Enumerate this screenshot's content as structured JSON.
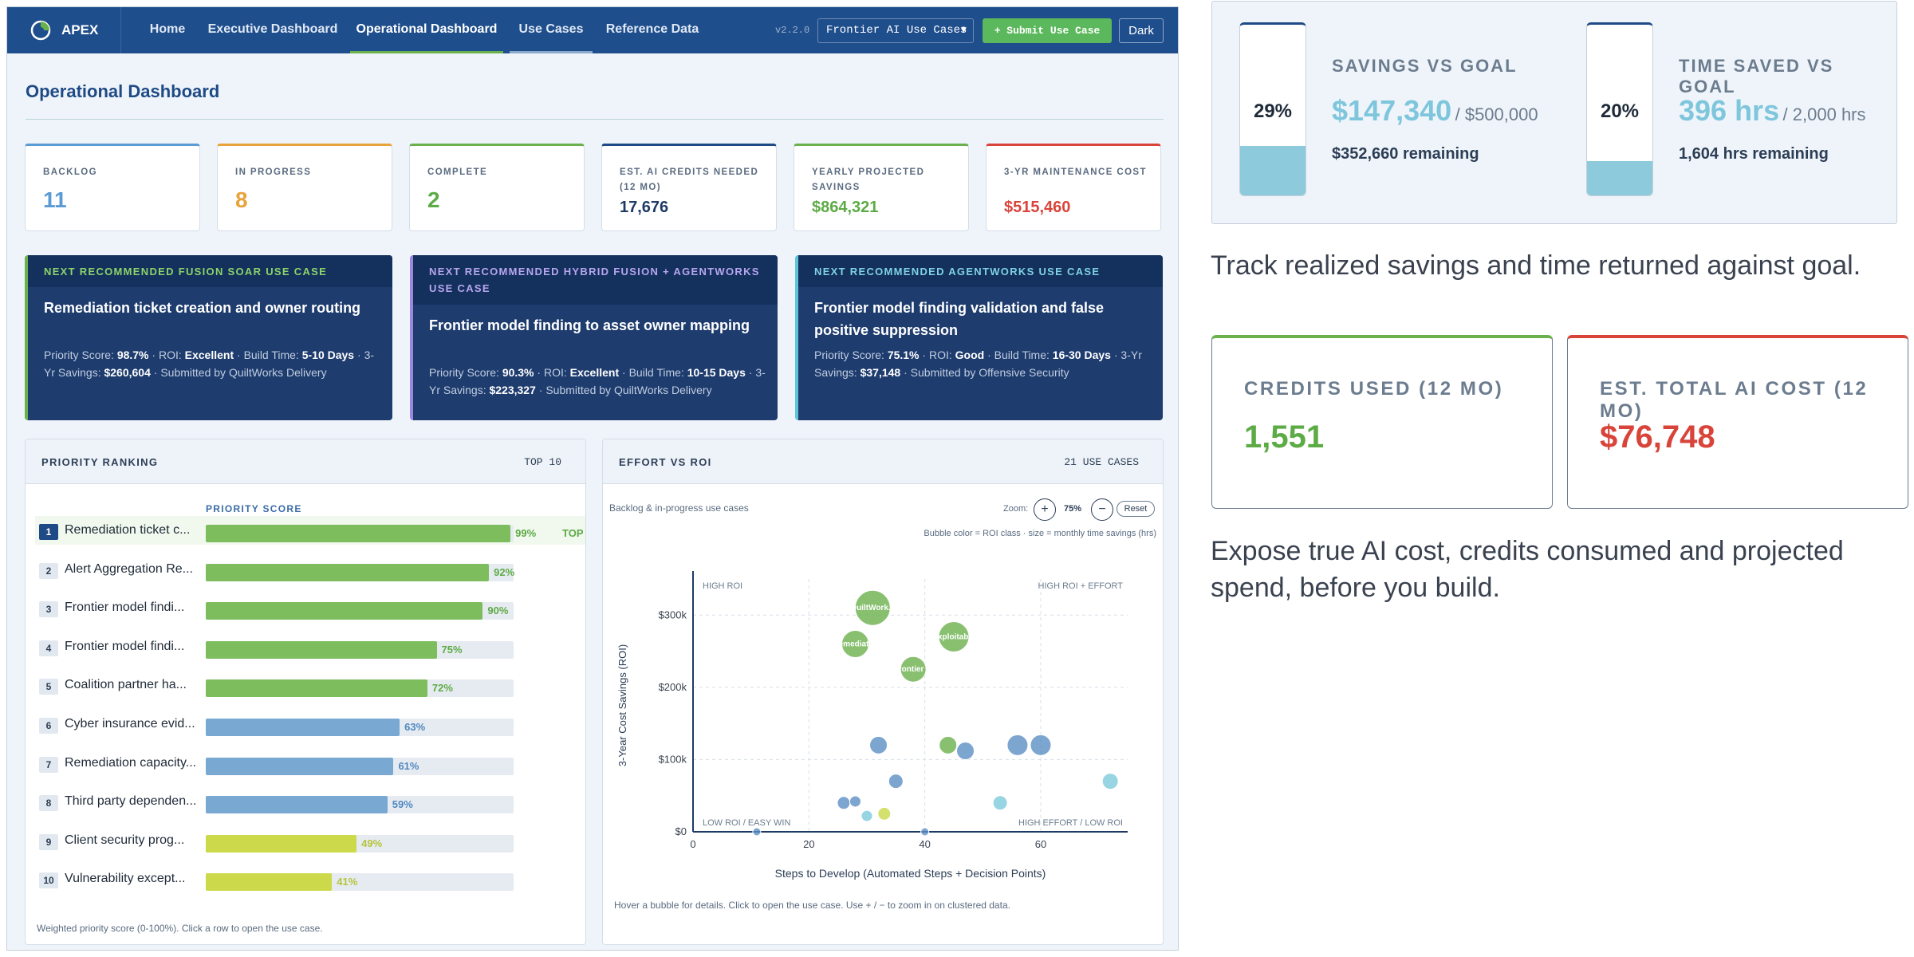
{
  "app": {
    "brand": "APEX",
    "version": "v2.2.0",
    "selector_value": "Frontier AI Use Cases",
    "submit_label": "+ Submit Use Case",
    "dark_label": "Dark"
  },
  "nav": [
    "Home",
    "Executive Dashboard",
    "Operational Dashboard",
    "Use Cases",
    "Reference Data"
  ],
  "page_title": "Operational Dashboard",
  "kpis": [
    {
      "label": "BACKLOG",
      "value": "11",
      "color": "#5b9bd5",
      "accent": "#5b9bd5"
    },
    {
      "label": "IN PROGRESS",
      "value": "8",
      "color": "#e8a33a",
      "accent": "#e8a33a"
    },
    {
      "label": "COMPLETE",
      "value": "2",
      "color": "#5cab45",
      "accent": "#6ab04c"
    },
    {
      "label": "EST. AI CREDITS NEEDED (12 MO)",
      "value": "17,676",
      "color": "#1e3a64",
      "accent": "#1e4a85"
    },
    {
      "label": "YEARLY PROJECTED SAVINGS",
      "value": "$864,321",
      "color": "#5cab45",
      "accent": "#6ab04c"
    },
    {
      "label": "3-YR MAINTENANCE COST",
      "value": "$515,460",
      "color": "#d9443a",
      "accent": "#d9443a"
    }
  ],
  "recommendations": [
    {
      "header": "NEXT RECOMMENDED FUSION SOAR USE CASE",
      "header_color": "#8cd46b",
      "title": "Remediation ticket creation and owner routing",
      "priority_label": "Priority Score:",
      "priority": "98.7%",
      "roi_label": "ROI:",
      "roi": "Excellent",
      "build_label": "Build Time:",
      "build": "5-10 Days",
      "savings_label": "3-Yr Savings:",
      "savings": "$260,604",
      "submitted": "Submitted by QuiltWorks Delivery"
    },
    {
      "header": "NEXT RECOMMENDED HYBRID FUSION + AGENTWORKS USE CASE",
      "header_color": "#b7a6f0",
      "title": "Frontier model finding to asset owner mapping",
      "priority_label": "Priority Score:",
      "priority": "90.3%",
      "roi_label": "ROI:",
      "roi": "Excellent",
      "build_label": "Build Time:",
      "build": "10-15 Days",
      "savings_label": "3-Yr Savings:",
      "savings": "$223,327",
      "submitted": "Submitted by QuiltWorks Delivery"
    },
    {
      "header": "NEXT RECOMMENDED AGENTWORKS USE CASE",
      "header_color": "#7fd3e6",
      "title": "Frontier model finding validation and false positive suppression",
      "priority_label": "Priority Score:",
      "priority": "75.1%",
      "roi_label": "ROI:",
      "roi": "Good",
      "build_label": "Build Time:",
      "build": "16-30 Days",
      "savings_label": "3-Yr Savings:",
      "savings": "$37,148",
      "submitted": "Submitted by Offensive Security"
    }
  ],
  "priority": {
    "title": "PRIORITY RANKING",
    "badge": "TOP 10",
    "column_header": "PRIORITY SCORE",
    "top_tag": "TOP",
    "footer": "Weighted priority score (0-100%). Click a row to open the use case.",
    "rows": [
      {
        "rank": "1",
        "name": "Remediation ticket c...",
        "score": 99,
        "label": "99%",
        "color": "#7ebd5e"
      },
      {
        "rank": "2",
        "name": "Alert Aggregation Re...",
        "score": 92,
        "label": "92%",
        "color": "#7ebd5e"
      },
      {
        "rank": "3",
        "name": "Frontier model findi...",
        "score": 90,
        "label": "90%",
        "color": "#7ebd5e"
      },
      {
        "rank": "4",
        "name": "Frontier model findi...",
        "score": 75,
        "label": "75%",
        "color": "#7ebd5e"
      },
      {
        "rank": "5",
        "name": "Coalition partner ha...",
        "score": 72,
        "label": "72%",
        "color": "#7ebd5e"
      },
      {
        "rank": "6",
        "name": "Cyber insurance evid...",
        "score": 63,
        "label": "63%",
        "color": "#79a8d2"
      },
      {
        "rank": "7",
        "name": "Remediation capacity...",
        "score": 61,
        "label": "61%",
        "color": "#79a8d2"
      },
      {
        "rank": "8",
        "name": "Third party dependen...",
        "score": 59,
        "label": "59%",
        "color": "#79a8d2"
      },
      {
        "rank": "9",
        "name": "Client security prog...",
        "score": 49,
        "label": "49%",
        "color": "#cbd94a"
      },
      {
        "rank": "10",
        "name": "Vulnerability except...",
        "score": 41,
        "label": "41%",
        "color": "#cbd94a"
      }
    ]
  },
  "effort": {
    "title": "EFFORT VS ROI",
    "badge": "21 USE CASES",
    "subtitle": "Backlog & in-progress use cases",
    "zoom_label": "Zoom:",
    "zoom_value": "75%",
    "reset_label": "Reset",
    "legend_note": "Bubble color = ROI class · size = monthly time savings (hrs)",
    "footer": "Hover a bubble for details. Click to open the use case. Use + / − to zoom in on clustered data."
  },
  "chart_data": {
    "type": "scatter",
    "xlabel": "Steps to Develop (Automated Steps + Decision Points)",
    "ylabel": "3-Year Cost Savings (ROI)",
    "xlim": [
      0,
      75
    ],
    "ylim": [
      0,
      350000
    ],
    "xticks": [
      0,
      20,
      40,
      60
    ],
    "xtick_labels": [
      "0",
      "20",
      "40",
      "60"
    ],
    "yticks": [
      0,
      100000,
      200000,
      300000
    ],
    "ytick_labels": [
      "$0",
      "$100k",
      "$200k",
      "$300k"
    ],
    "quadrants": [
      "HIGH ROI",
      "HIGH ROI + EFFORT",
      "LOW ROI / EASY WIN",
      "HIGH EFFORT / LOW ROI"
    ],
    "grid": true,
    "points": [
      {
        "x": 31,
        "y": 310000,
        "r": 22,
        "label": "QuiltWork...",
        "color": "#6ab04c"
      },
      {
        "x": 28,
        "y": 260000,
        "r": 17,
        "label": "Remediati...",
        "color": "#6ab04c"
      },
      {
        "x": 45,
        "y": 270000,
        "r": 19,
        "label": "Exploitab...",
        "color": "#6ab04c"
      },
      {
        "x": 38,
        "y": 225000,
        "r": 16,
        "label": "Frontier ...",
        "color": "#6ab04c"
      },
      {
        "x": 32,
        "y": 120000,
        "r": 11,
        "label": "",
        "color": "#5b8fc4"
      },
      {
        "x": 44,
        "y": 120000,
        "r": 11,
        "label": "",
        "color": "#6ab04c"
      },
      {
        "x": 47,
        "y": 112000,
        "r": 11,
        "label": "",
        "color": "#5b8fc4"
      },
      {
        "x": 56,
        "y": 120000,
        "r": 13,
        "label": "",
        "color": "#5b8fc4"
      },
      {
        "x": 60,
        "y": 120000,
        "r": 13,
        "label": "",
        "color": "#5b8fc4"
      },
      {
        "x": 35,
        "y": 70000,
        "r": 9,
        "label": "",
        "color": "#5b8fc4"
      },
      {
        "x": 26,
        "y": 40000,
        "r": 8,
        "label": "",
        "color": "#5b8fc4"
      },
      {
        "x": 28,
        "y": 42000,
        "r": 7,
        "label": "",
        "color": "#5b8fc4"
      },
      {
        "x": 30,
        "y": 22000,
        "r": 7,
        "label": "",
        "color": "#7ecbdb"
      },
      {
        "x": 33,
        "y": 25000,
        "r": 8,
        "label": "",
        "color": "#cbd94a"
      },
      {
        "x": 53,
        "y": 40000,
        "r": 9,
        "label": "",
        "color": "#7ecbdb"
      },
      {
        "x": 72,
        "y": 70000,
        "r": 10,
        "label": "",
        "color": "#7ecbdb"
      },
      {
        "x": 11,
        "y": 0,
        "r": 5,
        "label": "",
        "color": "#5b8fc4"
      },
      {
        "x": 40,
        "y": 0,
        "r": 5,
        "label": "",
        "color": "#5b8fc4"
      }
    ]
  },
  "savings_goal": {
    "pct": "29%",
    "fill": 0.29,
    "label": "SAVINGS VS GOAL",
    "value": "$147,340",
    "goal": "/ $500,000",
    "remaining": "$352,660 remaining"
  },
  "time_goal": {
    "pct": "20%",
    "fill": 0.2,
    "label": "TIME SAVED VS GOAL",
    "value": "396 hrs",
    "goal": "/ 2,000 hrs",
    "remaining": "1,604 hrs remaining"
  },
  "captions": {
    "track": "Track realized savings and time returned against goal.",
    "expose": "Expose true AI cost, credits consumed and projected spend, before you build."
  },
  "credits": {
    "label": "CREDITS USED (12 MO)",
    "value": "1,551",
    "color": "#5cab45"
  },
  "ai_cost": {
    "label": "EST. TOTAL AI COST (12 MO)",
    "value": "$76,748",
    "color": "#d9443a"
  }
}
